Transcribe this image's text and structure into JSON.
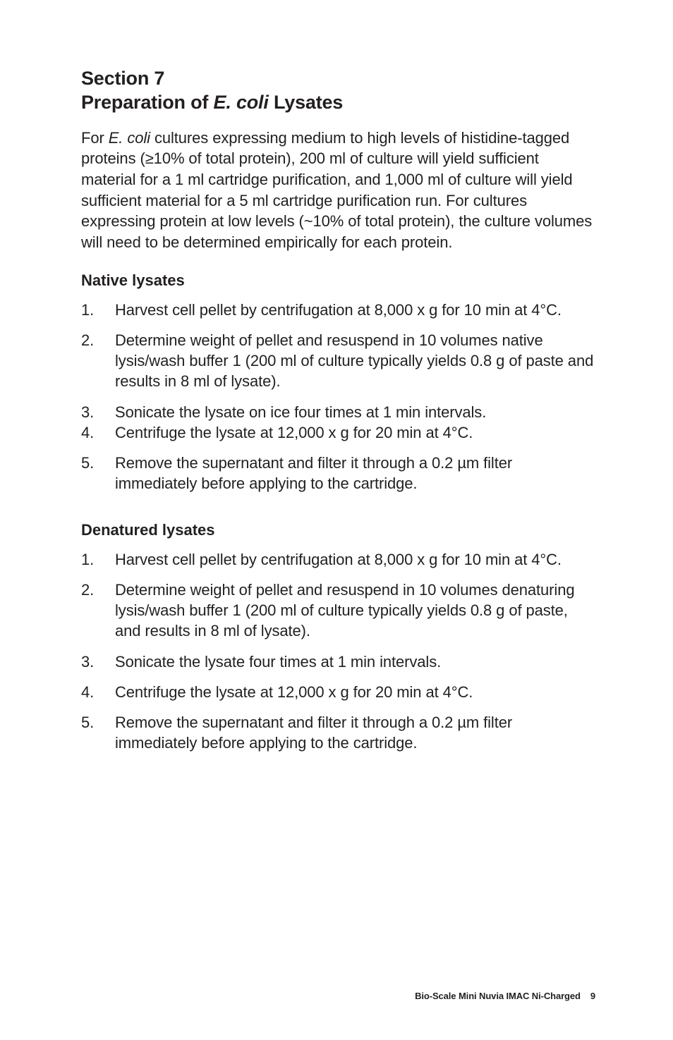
{
  "section": {
    "line1": "Section 7",
    "line2_pre": "Preparation of ",
    "line2_em": "E. coli",
    "line2_post": " Lysates"
  },
  "intro": {
    "pre": "For ",
    "em": "E. coli",
    "post": " cultures expressing medium to high levels of histidine-tagged proteins (≥10% of total protein), 200 ml of culture will yield sufficient material for a 1 ml cartridge purification, and 1,000 ml of culture will yield sufficient material for a 5 ml cartridge purification run. For cultures expressing protein at low levels (~10% of total protein), the culture volumes will need to be determined empirically for each protein."
  },
  "native": {
    "heading": "Native lysates",
    "items": [
      "Harvest cell pellet by centrifugation at 8,000 x g for 10 min at 4°C.",
      "Determine weight of pellet and resuspend in 10 volumes native lysis/wash buffer 1 (200 ml of culture typically yields 0.8 g of paste and results in 8 ml of lysate).",
      "Sonicate the lysate on ice four times at 1 min intervals.",
      "Centrifuge the lysate at 12,000 x g for 20 min at 4°C.",
      "Remove the supernatant and filter it through a 0.2 µm filter immediately before applying to the cartridge."
    ]
  },
  "denatured": {
    "heading": "Denatured lysates",
    "items": [
      "Harvest cell pellet by centrifugation at 8,000 x g for 10 min at 4°C.",
      "Determine weight of pellet and resuspend in 10 volumes denaturing lysis/wash buffer 1 (200 ml of culture typically yields 0.8 g of paste, and results in 8 ml of lysate).",
      "Sonicate the lysate four times at 1 min intervals.",
      "Centrifuge the lysate at 12,000 x g for 20 min at 4°C.",
      "Remove the supernatant and filter it through a 0.2 µm filter immediately before applying to the cartridge."
    ]
  },
  "footer": {
    "title": "Bio-Scale Mini Nuvia IMAC Ni-Charged",
    "page": "9"
  }
}
